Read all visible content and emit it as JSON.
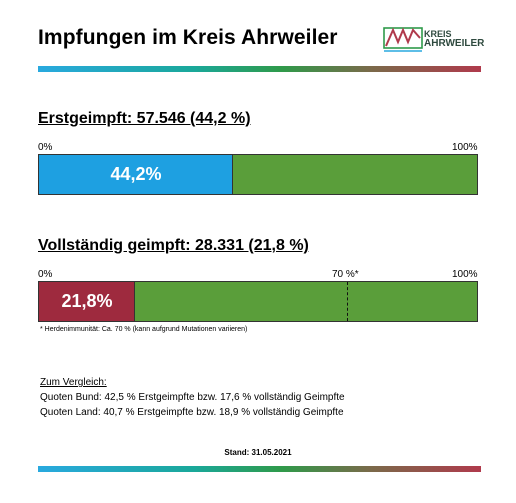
{
  "header": {
    "title": "Impfungen im Kreis Ahrweiler",
    "logo_line1": "KREIS",
    "logo_line2": "AHRWEILER",
    "logo_mark": "AW"
  },
  "colors": {
    "blue": "#1ea0e1",
    "green": "#5a9e3a",
    "red": "#9e2a3e"
  },
  "chart_data": [
    {
      "type": "bar",
      "title": "Erstgeimpft: 57.546 (44,2 %)",
      "value": 44.2,
      "value_label": "44,2%",
      "ylim": [
        0,
        100
      ],
      "tick_labels": [
        "0%",
        "100%"
      ],
      "fill_color": "#1ea0e1",
      "remainder_color": "#5a9e3a"
    },
    {
      "type": "bar",
      "title": "Vollständig geimpft: 28.331 (21,8 %)",
      "value": 21.8,
      "value_label": "21,8%",
      "ylim": [
        0,
        100
      ],
      "tick_labels": [
        "0%",
        "100%"
      ],
      "threshold": 70,
      "threshold_label": "70 %*",
      "fill_color": "#9e2a3e",
      "remainder_color": "#5a9e3a"
    }
  ],
  "footnote": "* Herdenimmunität: Ca. 70 % (kann aufgrund Mutationen variieren)",
  "vergleich": {
    "heading": "Zum Vergleich:",
    "line1": "Quoten Bund: 42,5 % Erstgeimpfte bzw. 17,6 % vollständig Geimpfte",
    "line2": "Quoten Land: 40,7 % Erstgeimpfte bzw. 18,9 % vollständig Geimpfte"
  },
  "stand": "Stand: 31.05.2021"
}
